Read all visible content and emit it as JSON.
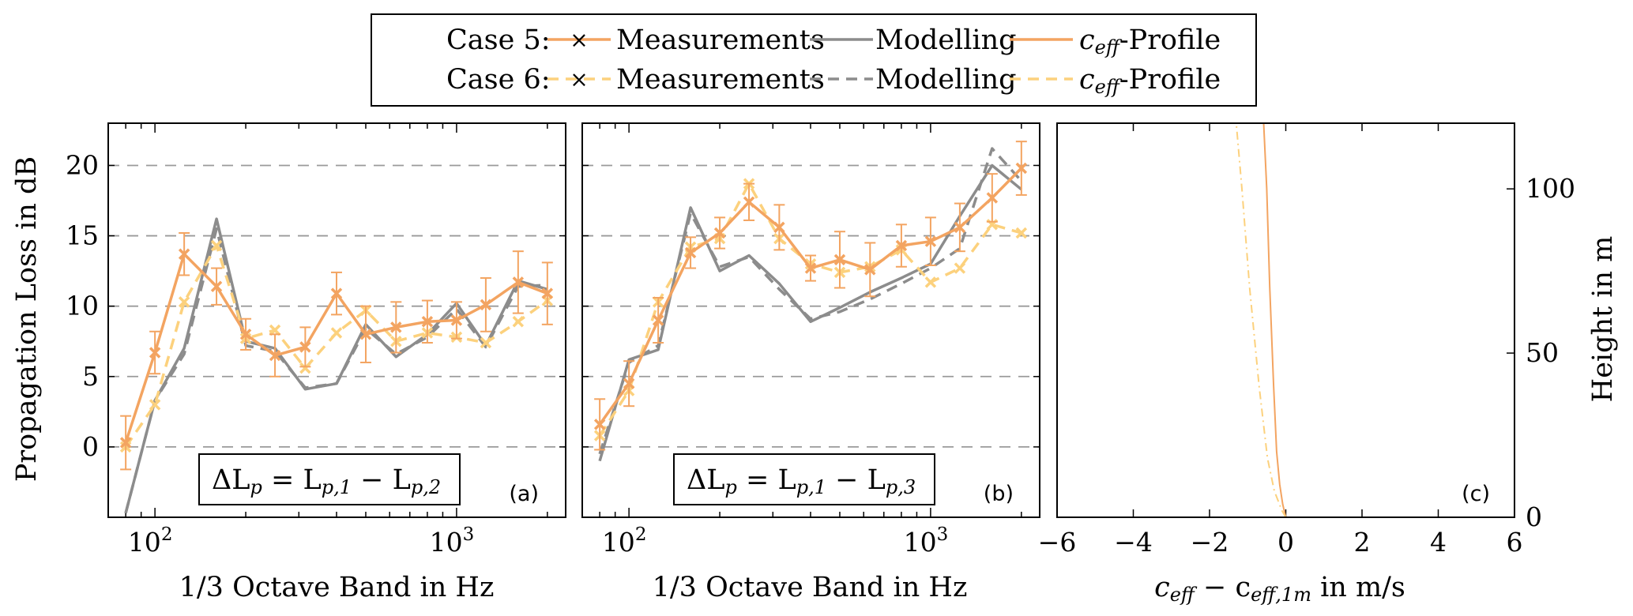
{
  "legend": {
    "case5": "Case 5:",
    "case6": "Case 6:",
    "measurements": "Measurements",
    "modelling": "Modelling",
    "profile_prefix": "c",
    "profile_sub": "eff",
    "profile_suffix": "-Profile"
  },
  "colors": {
    "case5_meas": "#f3a461",
    "case5_model": "#8c8c8c",
    "case5_profile": "#f3a461",
    "case6_meas": "#fcd17d",
    "case6_model": "#8c8c8c",
    "case6_profile": "#fcd17d"
  },
  "axes": {
    "shared_ylabel": "Propagation Loss in dB",
    "xlabel_ab": "1/3 Octave Band in Hz",
    "xlabel_c_main": "c",
    "xlabel_c_sub1": "eff",
    "xlabel_c_mid": " − c",
    "xlabel_c_sub2": "eff,1m",
    "xlabel_c_unit": " in m/s",
    "ylabel_c": "Height in m",
    "tick_x_ab_base": "10",
    "tick_x_ab_exp": [
      "2",
      "3"
    ],
    "tick_y_ab": [
      "0",
      "5",
      "10",
      "15",
      "20"
    ],
    "tick_x_c": [
      "−6",
      "−4",
      "−2",
      "0",
      "2",
      "4",
      "6"
    ],
    "tick_y_c": [
      "0",
      "50",
      "100"
    ]
  },
  "panels": {
    "a": {
      "tag": "(a)",
      "formula": {
        "lhs": "ΔL",
        "lhs_sub": "p",
        "mid": " = L",
        "sub1": "p,1",
        "minus": " − L",
        "sub2": "p,2"
      }
    },
    "b": {
      "tag": "(b)",
      "formula": {
        "lhs": "ΔL",
        "lhs_sub": "p",
        "mid": " = L",
        "sub1": "p,1",
        "minus": " − L",
        "sub2": "p,3"
      }
    },
    "c": {
      "tag": "(c)"
    }
  },
  "chart_data": [
    {
      "type": "line",
      "panel": "a",
      "xscale": "log",
      "xlim": [
        70,
        2300
      ],
      "ylim": [
        -5,
        23
      ],
      "grid": "horizontal dashed",
      "x": [
        80,
        100,
        125,
        160,
        200,
        250,
        315,
        400,
        500,
        630,
        800,
        1000,
        1250,
        1600,
        2000
      ],
      "series": [
        {
          "name": "Case 5 Measurements",
          "values": [
            0.3,
            6.7,
            13.7,
            11.4,
            8.0,
            6.5,
            7.1,
            10.9,
            8.0,
            8.5,
            8.9,
            9.0,
            10.1,
            11.7,
            10.9
          ],
          "err": [
            1.9,
            1.5,
            1.5,
            1.3,
            1.1,
            1.5,
            1.4,
            1.5,
            2.0,
            1.8,
            1.5,
            1.3,
            1.9,
            2.2,
            2.2
          ]
        },
        {
          "name": "Case 6 Measurements",
          "values": [
            0.0,
            3.0,
            10.3,
            14.3,
            7.7,
            8.3,
            5.6,
            8.1,
            9.7,
            7.5,
            8.1,
            7.8,
            7.4,
            8.9,
            10.4
          ]
        },
        {
          "name": "Case 5 Modelling",
          "values": [
            -4.7,
            3.3,
            7.0,
            16.2,
            7.5,
            7.0,
            4.1,
            4.5,
            8.7,
            6.4,
            8.0,
            10.2,
            7.2,
            11.8,
            11.2
          ]
        },
        {
          "name": "Case 6 Modelling",
          "values": [
            -4.7,
            3.3,
            6.6,
            15.5,
            7.2,
            6.8,
            4.2,
            4.5,
            8.4,
            6.6,
            7.8,
            9.8,
            7.1,
            11.4,
            11.5
          ]
        }
      ]
    },
    {
      "type": "line",
      "panel": "b",
      "xscale": "log",
      "xlim": [
        70,
        2300
      ],
      "ylim": [
        -5,
        23
      ],
      "grid": "horizontal dashed",
      "x": [
        80,
        100,
        125,
        160,
        200,
        250,
        315,
        400,
        500,
        630,
        800,
        1000,
        1250,
        1600,
        2000
      ],
      "series": [
        {
          "name": "Case 5 Measurements",
          "values": [
            1.6,
            4.5,
            9.0,
            13.8,
            15.2,
            17.4,
            15.6,
            12.7,
            13.3,
            12.6,
            14.3,
            14.6,
            15.6,
            17.7,
            19.8
          ],
          "err": [
            1.8,
            1.6,
            1.6,
            1.1,
            1.1,
            1.3,
            1.6,
            0.9,
            2.0,
            1.9,
            1.5,
            1.7,
            1.7,
            1.7,
            1.9
          ]
        },
        {
          "name": "Case 6 Measurements",
          "values": [
            0.8,
            4.0,
            10.3,
            14.2,
            14.8,
            18.7,
            14.8,
            13.0,
            12.4,
            12.8,
            14.0,
            11.7,
            12.7,
            15.8,
            15.2
          ]
        },
        {
          "name": "Case 5 Modelling",
          "values": [
            -1.0,
            6.2,
            6.9,
            17.0,
            12.5,
            13.6,
            11.6,
            8.9,
            9.9,
            11.0,
            12.0,
            13.0,
            16.4,
            20.0,
            18.3
          ]
        },
        {
          "name": "Case 6 Modelling",
          "values": [
            -0.5,
            6.0,
            7.2,
            16.6,
            12.8,
            13.5,
            11.2,
            9.1,
            9.6,
            10.5,
            11.6,
            12.7,
            14.1,
            21.2,
            18.9
          ]
        }
      ]
    },
    {
      "type": "line",
      "panel": "c",
      "xlabel": "c_eff − c_eff,1m in m/s",
      "ylabel": "Height in m",
      "xlim": [
        -6,
        6
      ],
      "ylim": [
        0,
        120
      ],
      "series": [
        {
          "name": "Case 5 c_eff-Profile",
          "x": [
            0.0,
            -0.08,
            -0.16,
            -0.24,
            -0.32,
            -0.42,
            -0.5,
            -0.58
          ],
          "y": [
            0,
            4,
            10,
            20,
            40,
            70,
            100,
            120
          ]
        },
        {
          "name": "Case 6 c_eff-Profile",
          "x": [
            0.0,
            -0.1,
            -0.3,
            -0.48,
            -0.7,
            -0.95,
            -1.15,
            -1.3
          ],
          "y": [
            0,
            2,
            8,
            18,
            40,
            70,
            100,
            120
          ]
        }
      ]
    }
  ]
}
